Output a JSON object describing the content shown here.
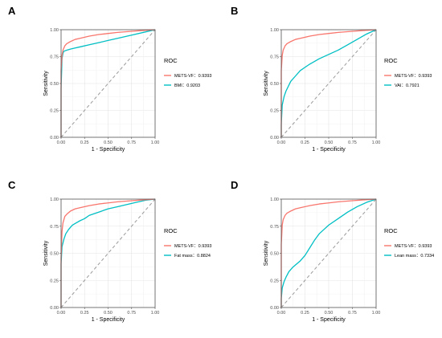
{
  "figure": {
    "panels": [
      "A",
      "B",
      "C",
      "D"
    ]
  },
  "chart_data": [
    {
      "panel": "A",
      "type": "line",
      "xlabel": "1 - Specificity",
      "ylabel": "Sensitivity",
      "xlim": [
        0,
        1
      ],
      "ylim": [
        0,
        1
      ],
      "xticks": [
        "0.00",
        "0.25",
        "0.50",
        "0.75",
        "1.00"
      ],
      "yticks": [
        "0.00",
        "0.25",
        "0.50",
        "0.75",
        "1.00"
      ],
      "grid": true,
      "legend": {
        "title": "ROC",
        "placement": "right"
      },
      "reference_line": {
        "x": [
          0,
          1
        ],
        "y": [
          0,
          1
        ],
        "style": "dashed"
      },
      "series": [
        {
          "name": "METS-VF：0.9393",
          "color": "#F8766D",
          "x": [
            0,
            0.0,
            0.01,
            0.02,
            0.04,
            0.06,
            0.1,
            0.15,
            0.2,
            0.3,
            0.4,
            0.5,
            0.6,
            0.75,
            0.9,
            1.0
          ],
          "y": [
            0,
            0.62,
            0.76,
            0.81,
            0.85,
            0.87,
            0.89,
            0.91,
            0.92,
            0.94,
            0.955,
            0.965,
            0.975,
            0.985,
            0.995,
            1.0
          ]
        },
        {
          "name": "BMI：0.9203",
          "color": "#00BFC4",
          "x": [
            0,
            0.0,
            0.01,
            0.02,
            0.03,
            0.06,
            0.1,
            0.15,
            0.2,
            0.3,
            0.4,
            0.5,
            0.6,
            0.75,
            0.9,
            1.0
          ],
          "y": [
            0,
            0.45,
            0.73,
            0.78,
            0.8,
            0.81,
            0.82,
            0.83,
            0.84,
            0.86,
            0.88,
            0.9,
            0.92,
            0.95,
            0.98,
            1.0
          ]
        }
      ]
    },
    {
      "panel": "B",
      "type": "line",
      "xlabel": "1 - Specificity",
      "ylabel": "Sensitivity",
      "xlim": [
        0,
        1
      ],
      "ylim": [
        0,
        1
      ],
      "xticks": [
        "0.00",
        "0.25",
        "0.50",
        "0.75",
        "1.00"
      ],
      "yticks": [
        "0.00",
        "0.25",
        "0.50",
        "0.75",
        "1.00"
      ],
      "grid": true,
      "legend": {
        "title": "ROC",
        "placement": "right"
      },
      "reference_line": {
        "x": [
          0,
          1
        ],
        "y": [
          0,
          1
        ],
        "style": "dashed"
      },
      "series": [
        {
          "name": "METS-VF：0.9393",
          "color": "#F8766D",
          "x": [
            0,
            0.0,
            0.01,
            0.02,
            0.04,
            0.06,
            0.1,
            0.15,
            0.2,
            0.3,
            0.4,
            0.5,
            0.6,
            0.75,
            0.9,
            1.0
          ],
          "y": [
            0,
            0.62,
            0.76,
            0.81,
            0.85,
            0.87,
            0.89,
            0.91,
            0.92,
            0.94,
            0.955,
            0.965,
            0.975,
            0.985,
            0.995,
            1.0
          ]
        },
        {
          "name": "VAI：0.7921",
          "color": "#00BFC4",
          "x": [
            0,
            0.0,
            0.01,
            0.03,
            0.05,
            0.1,
            0.15,
            0.2,
            0.25,
            0.3,
            0.4,
            0.5,
            0.6,
            0.7,
            0.8,
            0.9,
            1.0
          ],
          "y": [
            0,
            0.12,
            0.3,
            0.38,
            0.43,
            0.52,
            0.57,
            0.62,
            0.65,
            0.68,
            0.73,
            0.77,
            0.81,
            0.86,
            0.91,
            0.96,
            1.0
          ]
        }
      ]
    },
    {
      "panel": "C",
      "type": "line",
      "xlabel": "1 - Specificity",
      "ylabel": "Sensitivity",
      "xlim": [
        0,
        1
      ],
      "ylim": [
        0,
        1
      ],
      "xticks": [
        "0.00",
        "0.25",
        "0.50",
        "0.75",
        "1.00"
      ],
      "yticks": [
        "0.00",
        "0.25",
        "0.50",
        "0.75",
        "1.00"
      ],
      "grid": true,
      "legend": {
        "title": "ROC",
        "placement": "right"
      },
      "reference_line": {
        "x": [
          0,
          1
        ],
        "y": [
          0,
          1
        ],
        "style": "dashed"
      },
      "series": [
        {
          "name": "METS-VF：0.9393",
          "color": "#F8766D",
          "x": [
            0,
            0.0,
            0.01,
            0.02,
            0.04,
            0.06,
            0.1,
            0.15,
            0.2,
            0.3,
            0.4,
            0.5,
            0.6,
            0.75,
            0.9,
            1.0
          ],
          "y": [
            0,
            0.45,
            0.7,
            0.78,
            0.84,
            0.86,
            0.89,
            0.91,
            0.92,
            0.94,
            0.955,
            0.965,
            0.975,
            0.985,
            0.995,
            1.0
          ]
        },
        {
          "name": "Fat mass：0.8824",
          "color": "#00BFC4",
          "x": [
            0,
            0.0,
            0.01,
            0.03,
            0.05,
            0.08,
            0.12,
            0.16,
            0.2,
            0.25,
            0.3,
            0.4,
            0.5,
            0.6,
            0.7,
            0.8,
            0.9,
            1.0
          ],
          "y": [
            0,
            0.4,
            0.56,
            0.63,
            0.68,
            0.72,
            0.76,
            0.78,
            0.8,
            0.82,
            0.85,
            0.88,
            0.91,
            0.93,
            0.95,
            0.97,
            0.99,
            1.0
          ]
        }
      ]
    },
    {
      "panel": "D",
      "type": "line",
      "xlabel": "1 - Specificity",
      "ylabel": "Sensitivity",
      "xlim": [
        0,
        1
      ],
      "ylim": [
        0,
        1
      ],
      "xticks": [
        "0.00",
        "0.25",
        "0.50",
        "0.75",
        "1.00"
      ],
      "yticks": [
        "0.00",
        "0.25",
        "0.50",
        "0.75",
        "1.00"
      ],
      "grid": true,
      "legend": {
        "title": "ROC",
        "placement": "right"
      },
      "reference_line": {
        "x": [
          0,
          1
        ],
        "y": [
          0,
          1
        ],
        "style": "dashed"
      },
      "series": [
        {
          "name": "METS-VF：0.9393",
          "color": "#F8766D",
          "x": [
            0,
            0.0,
            0.01,
            0.02,
            0.04,
            0.06,
            0.1,
            0.15,
            0.2,
            0.3,
            0.4,
            0.5,
            0.6,
            0.75,
            0.9,
            1.0
          ],
          "y": [
            0,
            0.58,
            0.76,
            0.81,
            0.85,
            0.87,
            0.89,
            0.91,
            0.92,
            0.94,
            0.955,
            0.965,
            0.975,
            0.985,
            0.995,
            1.0
          ]
        },
        {
          "name": "Lean mass：0.7334",
          "color": "#00BFC4",
          "x": [
            0,
            0.0,
            0.01,
            0.03,
            0.05,
            0.08,
            0.12,
            0.16,
            0.2,
            0.25,
            0.3,
            0.35,
            0.4,
            0.45,
            0.5,
            0.6,
            0.7,
            0.8,
            0.9,
            1.0
          ],
          "y": [
            0,
            0.08,
            0.18,
            0.24,
            0.28,
            0.33,
            0.37,
            0.4,
            0.43,
            0.48,
            0.55,
            0.62,
            0.68,
            0.72,
            0.76,
            0.82,
            0.88,
            0.93,
            0.97,
            1.0
          ]
        }
      ]
    }
  ]
}
